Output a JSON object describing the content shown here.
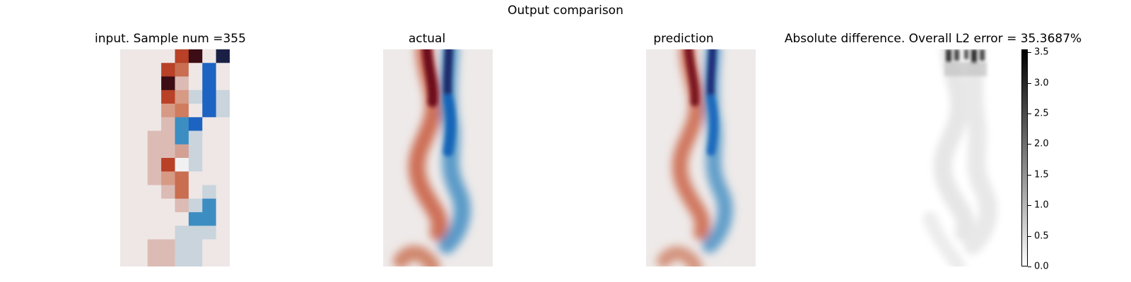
{
  "figure": {
    "suptitle": "Output comparison"
  },
  "chart_data": [
    {
      "type": "heatmap",
      "title": "input. Sample num =355",
      "grid": "8 columns x 16 rows, coarse",
      "colormap": "diverging red-white-blue"
    },
    {
      "type": "heatmap",
      "title": "actual",
      "colormap": "diverging red-white-blue"
    },
    {
      "type": "heatmap",
      "title": "prediction",
      "colormap": "diverging red-white-blue"
    },
    {
      "type": "heatmap",
      "title": "Absolute difference. Overall L2 error = 35.3687%",
      "colormap": "greys",
      "colorbar": {
        "range": [
          0,
          3.55
        ],
        "ticks": [
          0.0,
          0.5,
          1.0,
          1.5,
          2.0,
          2.5,
          3.0,
          3.5
        ],
        "tick_labels": [
          "0.0",
          "0.5",
          "1.0",
          "1.5",
          "2.0",
          "2.5",
          "3.0",
          "3.5"
        ]
      }
    }
  ]
}
